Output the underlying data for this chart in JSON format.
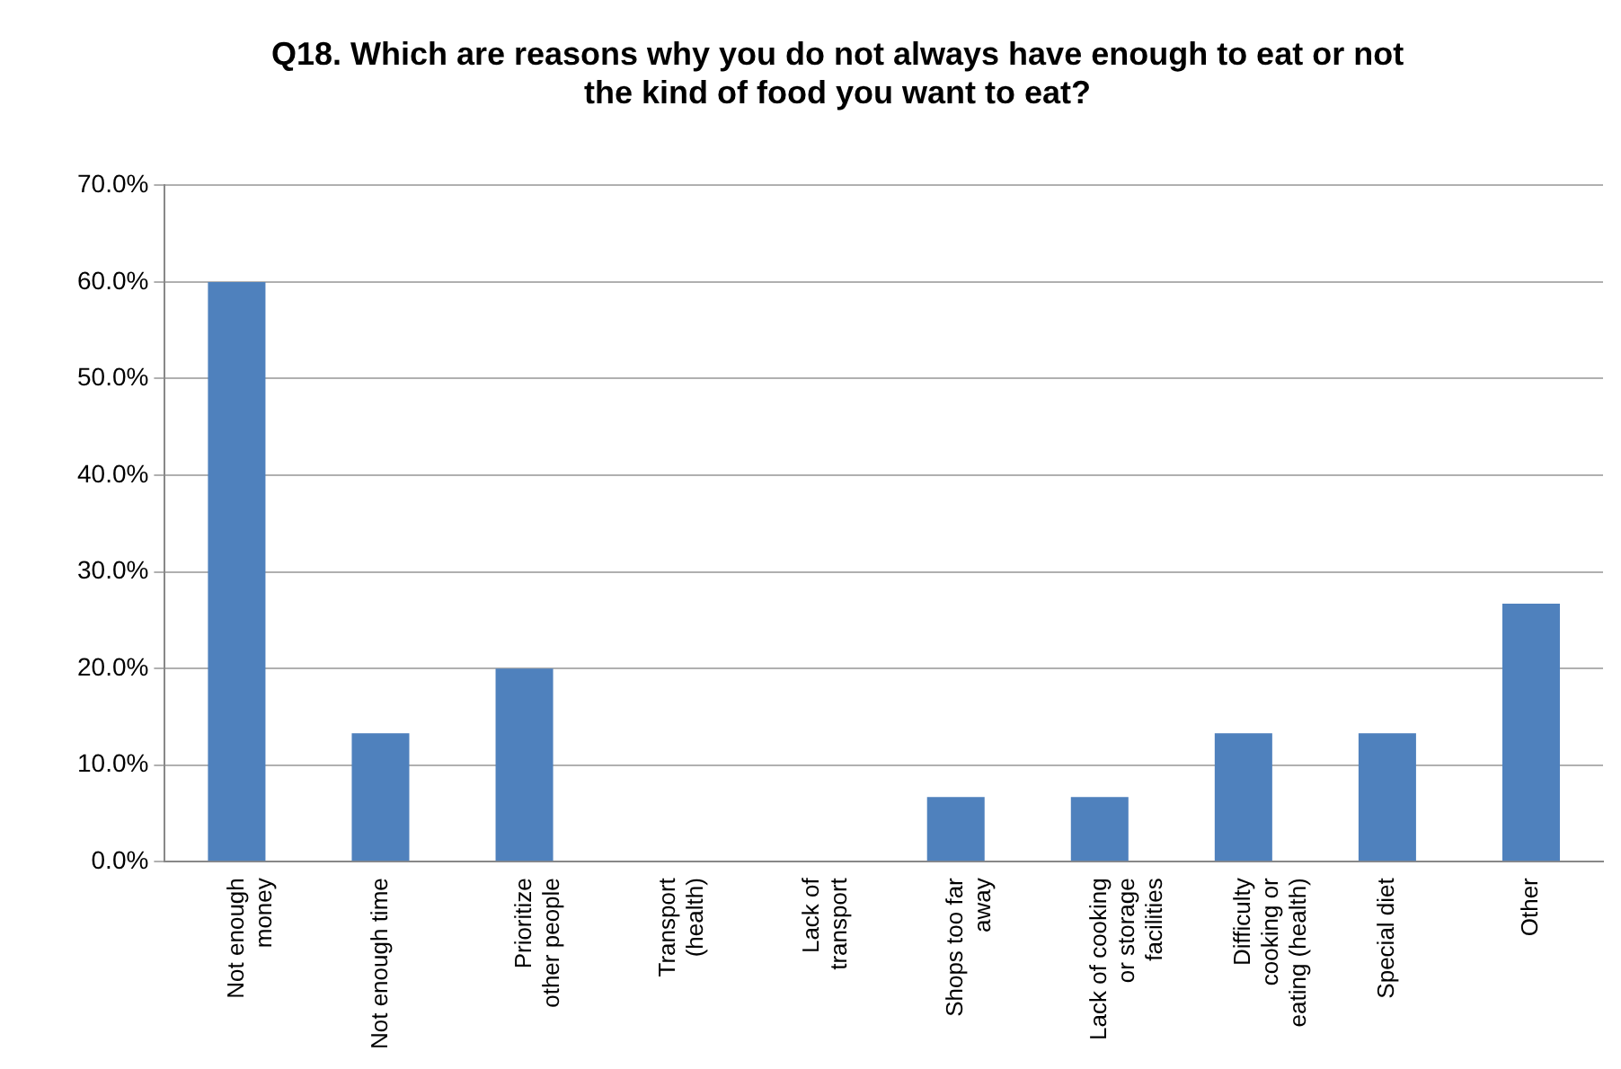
{
  "chart_data": {
    "type": "bar",
    "title": "Q18. Which are reasons why you do not always have enough to eat or not the kind of food you want to eat?",
    "categories": [
      "Not enough money",
      "Not enough time",
      "Prioritize other people",
      "Transport (health)",
      "Lack of transport",
      "Shops too far away",
      "Lack of cooking or storage facilities",
      "Difficulty cooking or eating (health)",
      "Special diet",
      "Other"
    ],
    "values": [
      60,
      13.3,
      20,
      0,
      0,
      6.7,
      6.7,
      13.3,
      13.3,
      26.7
    ],
    "color": "#4f81bd",
    "ylim": [
      0,
      70
    ],
    "yticks": [
      {
        "value": 0,
        "label": "0.0%"
      },
      {
        "value": 10,
        "label": "10.0%"
      },
      {
        "value": 20,
        "label": "20.0%"
      },
      {
        "value": 30,
        "label": "30.0%"
      },
      {
        "value": 40,
        "label": "40.0%"
      },
      {
        "value": 50,
        "label": "50.0%"
      },
      {
        "value": 60,
        "label": "60.0%"
      },
      {
        "value": 70,
        "label": "70.0%"
      }
    ],
    "grid": "y",
    "legend": false
  }
}
